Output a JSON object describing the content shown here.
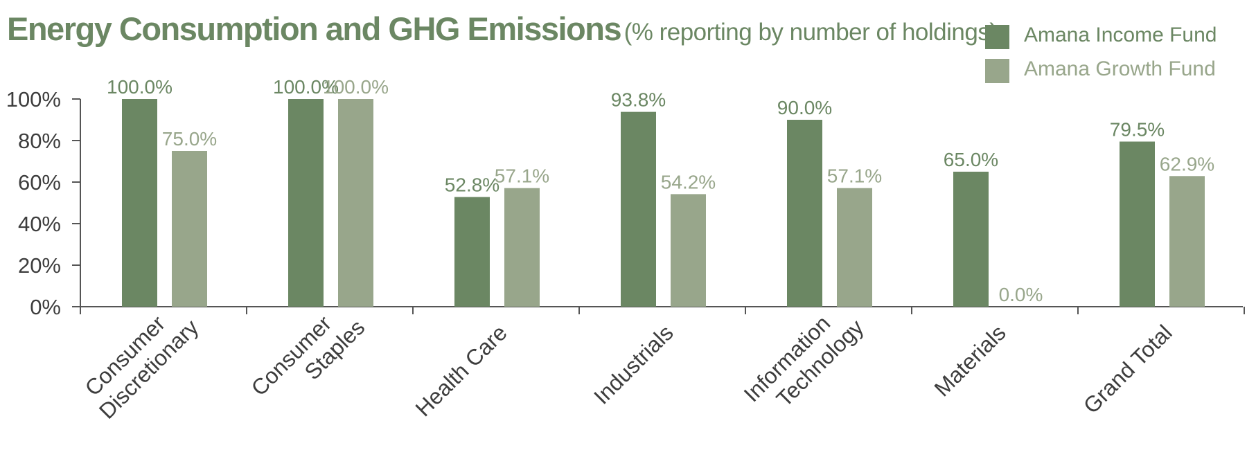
{
  "chart_data": {
    "type": "bar",
    "title": "Energy Consumption and GHG Emissions",
    "subtitle": "(% reporting by number of holdings)",
    "categories": [
      [
        "Consumer",
        "Discretionary"
      ],
      [
        "Consumer",
        "Staples"
      ],
      [
        "Health Care"
      ],
      [
        "Industrials"
      ],
      [
        "Information",
        "Technology"
      ],
      [
        "Materials"
      ],
      [
        "Grand Total"
      ]
    ],
    "series": [
      {
        "name": "Amana Income Fund",
        "color": "#6b8763",
        "values": [
          100.0,
          100.0,
          52.8,
          93.8,
          90.0,
          65.0,
          79.5
        ],
        "labels": [
          "100.0%",
          "100.0%",
          "52.8%",
          "93.8%",
          "90.0%",
          "65.0%",
          "79.5%"
        ]
      },
      {
        "name": "Amana Growth Fund",
        "color": "#98a68b",
        "values": [
          75.0,
          100.0,
          57.1,
          54.2,
          57.1,
          0.0,
          62.9
        ],
        "labels": [
          "75.0%",
          "100.0%",
          "57.1%",
          "54.2%",
          "57.1%",
          "0.0%",
          "62.9%"
        ]
      }
    ],
    "y_ticks": [
      0,
      20,
      40,
      60,
      80,
      100
    ],
    "y_tick_labels": [
      "0%",
      "20%",
      "40%",
      "60%",
      "80%",
      "100%"
    ],
    "ylim": [
      0,
      100
    ],
    "xlabel": "",
    "ylabel": "",
    "grid": false,
    "legend_position": "top-right"
  }
}
